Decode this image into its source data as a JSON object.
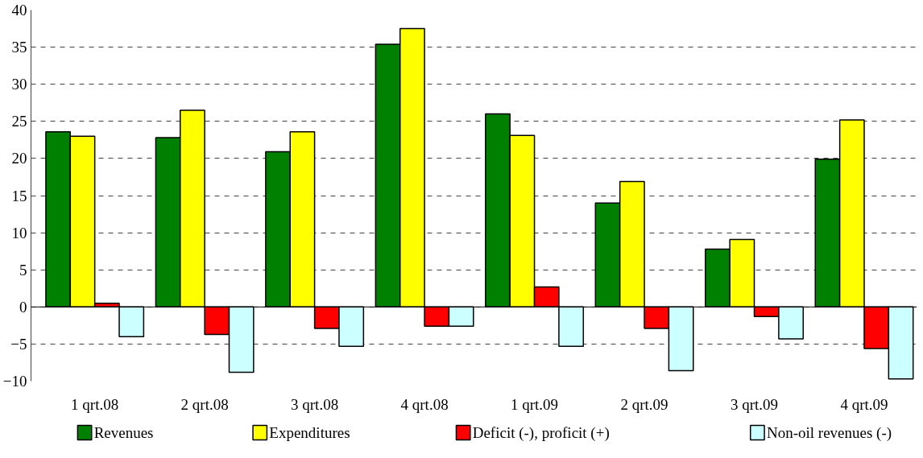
{
  "chart_data": {
    "type": "bar",
    "categories": [
      "1 qrt.08",
      "2 qrt.08",
      "3 qrt.08",
      "4 qrt.08",
      "1 qrt.09",
      "2 qrt.09",
      "3 qrt.09",
      "4 qrt.09"
    ],
    "series": [
      {
        "name": "Revenues",
        "color": "#008000",
        "values": [
          23.6,
          22.8,
          20.9,
          35.4,
          26.0,
          14.0,
          7.8,
          19.9
        ]
      },
      {
        "name": "Expenditures",
        "color": "#ffff00",
        "values": [
          23.0,
          26.5,
          23.6,
          37.5,
          23.1,
          16.9,
          9.1,
          25.2
        ]
      },
      {
        "name": "Deficit (-), proficit (+)",
        "color": "#ff0000",
        "values": [
          0.5,
          -3.7,
          -2.9,
          -2.6,
          2.7,
          -2.9,
          -1.3,
          -5.6
        ]
      },
      {
        "name": "Non-oil revenues (-)",
        "color": "#ccffff",
        "values": [
          -4.0,
          -8.8,
          -5.3,
          -2.6,
          -5.3,
          -8.6,
          -4.3,
          -9.7
        ]
      }
    ],
    "ylim": [
      -10,
      40
    ],
    "yticks": [
      -10,
      -5,
      0,
      5,
      10,
      15,
      20,
      25,
      30,
      35,
      40
    ],
    "grid": "y",
    "legend": "bottom"
  }
}
